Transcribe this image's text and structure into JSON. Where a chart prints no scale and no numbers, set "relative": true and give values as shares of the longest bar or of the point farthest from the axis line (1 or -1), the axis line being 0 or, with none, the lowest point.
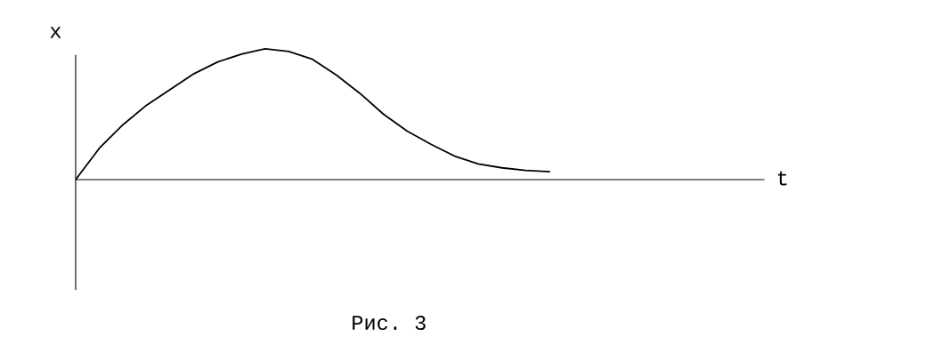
{
  "chart_data": {
    "type": "line",
    "relative": true,
    "ylabel": "x",
    "color": "#000000",
    "marker": "none",
    "line_style": "solid",
    "categories": [
      null,
      null,
      null,
      null,
      null,
      null,
      null,
      null,
      null,
      null,
      null,
      null,
      null,
      null,
      null,
      null,
      null,
      null,
      null,
      null,
      null
    ],
    "values": [
      0,
      0.24,
      0.42,
      0.57,
      0.69,
      0.81,
      0.9,
      0.96,
      1.0,
      0.98,
      0.92,
      0.8,
      0.66,
      0.5,
      0.37,
      0.27,
      0.18,
      0.12,
      0.09,
      0.07,
      0.06
    ],
    "annotations": [
      "t",
      "Рис. 3"
    ]
  }
}
